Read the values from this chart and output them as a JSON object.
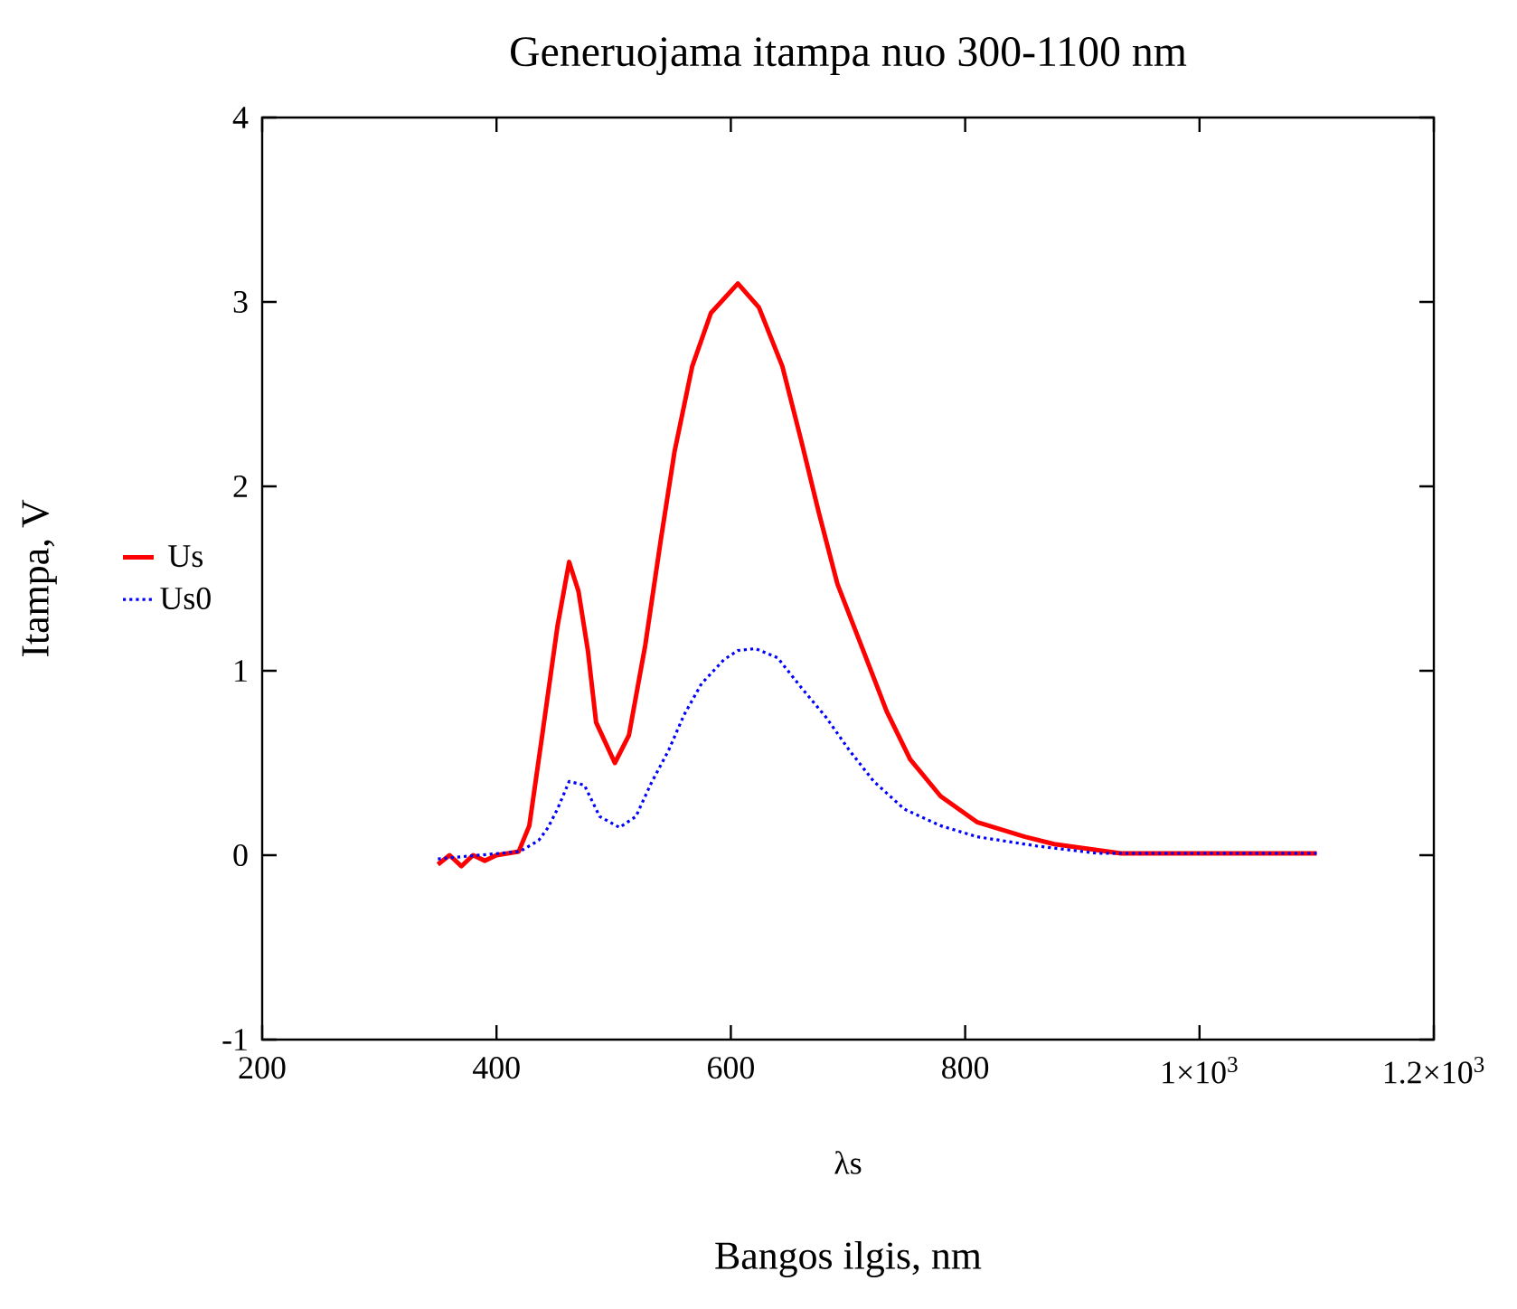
{
  "chart_data": {
    "type": "line",
    "title": "Generuojama itampa nuo 300-1100 nm",
    "xlabel": "Bangos ilgis, nm",
    "ylabel": "Itampa, V",
    "annotations": [
      "λs"
    ],
    "xlim": [
      200,
      1200
    ],
    "xticks": [
      200,
      400,
      600,
      800,
      {
        "value": 1000,
        "label": "1×10$^{3}$"
      },
      {
        "value": 1200,
        "label": "1.2×10$^{3}$"
      }
    ],
    "ylim": [
      -1,
      4
    ],
    "yticks": [
      -1,
      0,
      1,
      2,
      3,
      4
    ],
    "grid": false,
    "legend": "left",
    "series": [
      {
        "name": "Us",
        "color": "#ff0000",
        "line_style": "solid",
        "x": [
          350,
          360,
          370,
          380,
          390,
          400,
          419,
          428,
          439,
          452,
          462,
          470,
          478,
          485,
          501,
          513,
          527,
          540,
          552,
          567,
          583,
          606,
          624,
          644,
          660,
          675,
          691,
          713,
          733,
          753,
          779,
          810,
          851,
          876,
          933,
          1000,
          1100
        ],
        "values": [
          -0.05,
          0,
          -0.06,
          0,
          -0.03,
          0,
          0.02,
          0.16,
          0.65,
          1.24,
          1.59,
          1.43,
          1.11,
          0.72,
          0.5,
          0.65,
          1.14,
          1.7,
          2.19,
          2.65,
          2.94,
          3.1,
          2.97,
          2.65,
          2.25,
          1.86,
          1.47,
          1.11,
          0.78,
          0.52,
          0.32,
          0.18,
          0.1,
          0.06,
          0.01,
          0.01,
          0.01
        ]
      },
      {
        "name": "Us0",
        "color": "#0000ff",
        "line_style": "dotted",
        "x": [
          350,
          420,
          436,
          444,
          452,
          462,
          475,
          488,
          505,
          519,
          532,
          547,
          560,
          575,
          594,
          606,
          621,
          640,
          660,
          681,
          701,
          722,
          748,
          779,
          810,
          861,
          913,
          1000,
          1100
        ],
        "values": [
          -0.02,
          0.02,
          0.08,
          0.15,
          0.25,
          0.4,
          0.38,
          0.21,
          0.15,
          0.21,
          0.39,
          0.57,
          0.76,
          0.93,
          1.06,
          1.11,
          1.12,
          1.07,
          0.91,
          0.75,
          0.57,
          0.4,
          0.25,
          0.16,
          0.1,
          0.05,
          0.01,
          0.01,
          0.01
        ]
      }
    ]
  }
}
